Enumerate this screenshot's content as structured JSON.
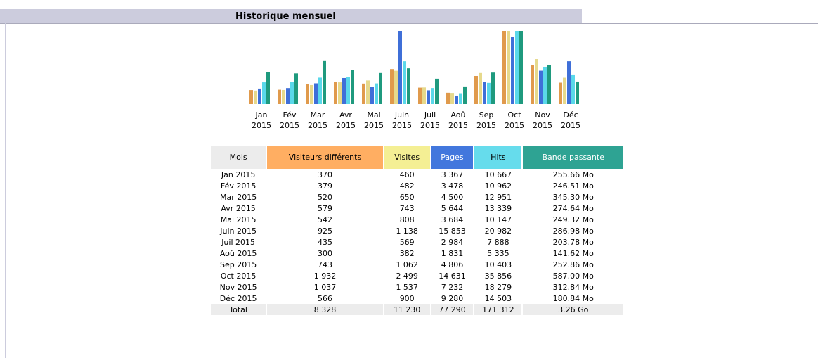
{
  "title": "Historique mensuel",
  "chart": {
    "labels": [
      {
        "month": "Jan",
        "year": "2015"
      },
      {
        "month": "Fév",
        "year": "2015"
      },
      {
        "month": "Mar",
        "year": "2015"
      },
      {
        "month": "Avr",
        "year": "2015"
      },
      {
        "month": "Mai",
        "year": "2015"
      },
      {
        "month": "Juin",
        "year": "2015"
      },
      {
        "month": "Juil",
        "year": "2015"
      },
      {
        "month": "Aoû",
        "year": "2015"
      },
      {
        "month": "Sep",
        "year": "2015"
      },
      {
        "month": "Oct",
        "year": "2015"
      },
      {
        "month": "Nov",
        "year": "2015"
      },
      {
        "month": "Déc",
        "year": "2015"
      }
    ],
    "colors": [
      "#e09a4c",
      "#e6d98c",
      "#3f6fd8",
      "#5ad8ea",
      "#1f9a7e"
    ]
  },
  "table": {
    "headers": [
      "Mois",
      "Visiteurs différents",
      "Visites",
      "Pages",
      "Hits",
      "Bande passante"
    ],
    "header_colors": [
      "#ececec",
      "#ffae62",
      "#f4ef94",
      "#4277dd",
      "#66dcec",
      "#2ea393"
    ],
    "rows": [
      [
        "Jan 2015",
        "370",
        "460",
        "3 367",
        "10 667",
        "255.66 Mo"
      ],
      [
        "Fév 2015",
        "379",
        "482",
        "3 478",
        "10 962",
        "246.51 Mo"
      ],
      [
        "Mar 2015",
        "520",
        "650",
        "4 500",
        "12 951",
        "345.30 Mo"
      ],
      [
        "Avr 2015",
        "579",
        "743",
        "5 644",
        "13 339",
        "274.64 Mo"
      ],
      [
        "Mai 2015",
        "542",
        "808",
        "3 684",
        "10 147",
        "249.32 Mo"
      ],
      [
        "Juin 2015",
        "925",
        "1 138",
        "15 853",
        "20 982",
        "286.98 Mo"
      ],
      [
        "Juil 2015",
        "435",
        "569",
        "2 984",
        "7 888",
        "203.78 Mo"
      ],
      [
        "Aoû 2015",
        "300",
        "382",
        "1 831",
        "5 335",
        "141.62 Mo"
      ],
      [
        "Sep 2015",
        "743",
        "1 062",
        "4 806",
        "10 403",
        "252.86 Mo"
      ],
      [
        "Oct 2015",
        "1 932",
        "2 499",
        "14 631",
        "35 856",
        "587.00 Mo"
      ],
      [
        "Nov 2015",
        "1 037",
        "1 537",
        "7 232",
        "18 279",
        "312.84 Mo"
      ],
      [
        "Déc 2015",
        "566",
        "900",
        "9 280",
        "14 503",
        "180.84 Mo"
      ]
    ],
    "total": [
      "Total",
      "8 328",
      "11 230",
      "77 290",
      "171 312",
      "3.26 Go"
    ]
  }
}
